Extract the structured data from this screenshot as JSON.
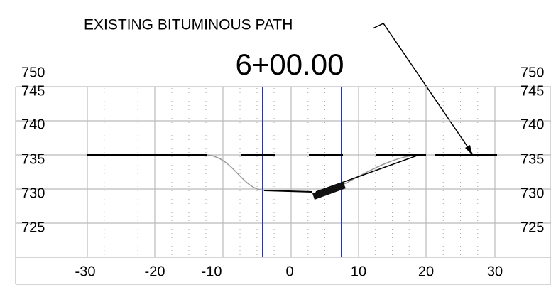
{
  "title": "6+00.00",
  "callout": "EXISTING BITUMINOUS PATH",
  "y_labels_left": [
    "750",
    "745",
    "740",
    "735",
    "730",
    "725"
  ],
  "y_labels_right": [
    "750",
    "745",
    "740",
    "735",
    "730",
    "725"
  ],
  "x_labels": [
    "-30",
    "-20",
    "-10",
    "0",
    "10",
    "20",
    "30"
  ]
}
